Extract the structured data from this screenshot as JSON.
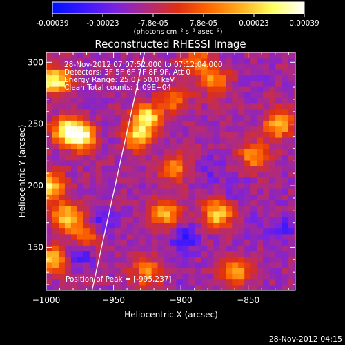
{
  "colorbar": {
    "ticks": [
      "-0.00039",
      "-0.00023",
      "-7.8e-05",
      "7.8e-05",
      "0.00023",
      "0.00039"
    ],
    "unit_label": "(photons cm⁻² s⁻¹ asec⁻²)",
    "stops": [
      "#0010ff",
      "#3a18ff",
      "#7a22e0",
      "#b02a80",
      "#e03010",
      "#ff6a00",
      "#ffb020",
      "#ffff60",
      "#ffffff"
    ]
  },
  "chart_data": {
    "type": "heatmap",
    "title": "Reconstructed RHESSI Image",
    "xlabel": "Heliocentric X (arcsec)",
    "ylabel": "Heliocentric Y (arcsec)",
    "xlim": [
      -1000,
      -815
    ],
    "ylim": [
      115,
      308
    ],
    "xticks": [
      -1000,
      -950,
      -900,
      -850
    ],
    "xtick_labels": [
      "−1000",
      "−950",
      "−900",
      "−850"
    ],
    "yticks": [
      150,
      200,
      250,
      300
    ],
    "ytick_labels": [
      "150",
      "200",
      "250",
      "300"
    ],
    "color_range": [
      -0.00039,
      0.00039
    ],
    "annotations": [
      "28-Nov-2012 07:07:52.000 to 07:12:04.000",
      "Detectors: 3F 5F 6F 7F 8F 9F, Att 0",
      "Energy Range: 25.0 - 50.0 keV",
      "Clean     Total counts: 1.09E+04"
    ],
    "peak_label": "Position of Peak = [-995,237]",
    "limb_line": {
      "x": [
        -966,
        -927
      ],
      "y": [
        115,
        308
      ]
    },
    "hotspots": [
      {
        "x": -993,
        "y": 285,
        "value": 0.00039
      },
      {
        "x": -985,
        "y": 245,
        "value": 0.00039
      },
      {
        "x": -972,
        "y": 240,
        "value": 0.00039
      },
      {
        "x": -998,
        "y": 200,
        "value": 0.00033
      },
      {
        "x": -985,
        "y": 175,
        "value": 0.0003
      },
      {
        "x": -995,
        "y": 140,
        "value": 0.00028
      },
      {
        "x": -970,
        "y": 160,
        "value": 0.00022
      },
      {
        "x": -925,
        "y": 255,
        "value": 0.00036
      },
      {
        "x": -932,
        "y": 240,
        "value": 0.00025
      },
      {
        "x": -873,
        "y": 177,
        "value": 0.0003
      },
      {
        "x": -912,
        "y": 178,
        "value": 0.00024
      },
      {
        "x": -827,
        "y": 250,
        "value": 0.00028
      },
      {
        "x": -845,
        "y": 225,
        "value": 0.0002
      },
      {
        "x": -875,
        "y": 285,
        "value": 0.00018
      },
      {
        "x": -860,
        "y": 130,
        "value": 0.00022
      },
      {
        "x": -925,
        "y": 130,
        "value": 0.00018
      },
      {
        "x": -905,
        "y": 215,
        "value": 0.00016
      },
      {
        "x": -888,
        "y": 300,
        "value": 0.00015
      },
      {
        "x": -905,
        "y": 270,
        "value": 0.00014
      }
    ],
    "coldspots": [
      {
        "x": -960,
        "y": 240,
        "value": -0.00022
      },
      {
        "x": -960,
        "y": 170,
        "value": -0.00028
      },
      {
        "x": -975,
        "y": 147,
        "value": -0.00033
      },
      {
        "x": -897,
        "y": 157,
        "value": -0.0003
      },
      {
        "x": -880,
        "y": 213,
        "value": -0.00022
      },
      {
        "x": -857,
        "y": 196,
        "value": -0.00018
      },
      {
        "x": -823,
        "y": 167,
        "value": -0.00025
      },
      {
        "x": -847,
        "y": 165,
        "value": -0.0002
      },
      {
        "x": -840,
        "y": 287,
        "value": -0.00014
      },
      {
        "x": -885,
        "y": 260,
        "value": -0.00012
      },
      {
        "x": -900,
        "y": 125,
        "value": -0.00016
      }
    ],
    "background_value": -0.00012
  },
  "footer": {
    "timestamp": "28-Nov-2012 04:15"
  }
}
